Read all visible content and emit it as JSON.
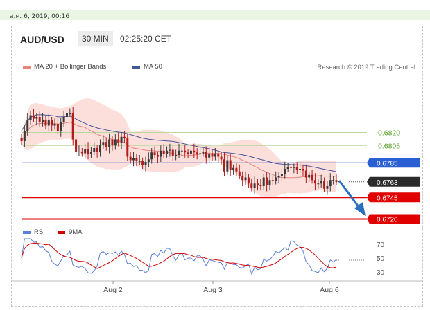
{
  "timestamp": "ส.ค. 6, 2019, 00:16",
  "header": {
    "symbol": "AUD/USD",
    "timeframe": "30 MIN",
    "time": "02:25:20 CET"
  },
  "legend": {
    "bb": "MA 20 + Bollinger Bands",
    "ma50": "MA 50",
    "credit": "Research © 2019 Trading Central"
  },
  "rsi_legend": {
    "rsi": "RSI",
    "ma9": "9MA"
  },
  "colors": {
    "ma20": "#e8837e",
    "ma50": "#44559a",
    "band": "#fbd9d5",
    "up": "#3a3a3a",
    "down": "#b31a1a",
    "green_level": "#59a02a",
    "blue_level": "#2a5fd4",
    "red_level": "#e00000",
    "current": "#2b2b2b",
    "rsi": "#5a7fd8",
    "ma9": "#d00000",
    "arrow": "#2a6ebf"
  },
  "chart_data": {
    "type": "candlestick",
    "x_ticks": [
      "Aug 2",
      "Aug 3",
      "Aug 6"
    ],
    "levels": [
      {
        "value": 0.682,
        "label": "0.6820",
        "style": "green"
      },
      {
        "value": 0.6805,
        "label": "0.6805",
        "style": "green"
      },
      {
        "value": 0.6785,
        "label": "0.6785",
        "style": "blue"
      },
      {
        "value": 0.6763,
        "label": "0.6763",
        "style": "current"
      },
      {
        "value": 0.6745,
        "label": "0.6745",
        "style": "red"
      },
      {
        "value": 0.672,
        "label": "0.6720",
        "style": "red"
      }
    ],
    "closes": [
      0.681,
      0.6822,
      0.6834,
      0.684,
      0.6836,
      0.6838,
      0.6832,
      0.6834,
      0.6828,
      0.6834,
      0.6828,
      0.683,
      0.6822,
      0.6832,
      0.6838,
      0.6842,
      0.6842,
      0.6812,
      0.6798,
      0.6798,
      0.6796,
      0.6801,
      0.6795,
      0.6798,
      0.6802,
      0.6798,
      0.6806,
      0.6809,
      0.6803,
      0.6812,
      0.6805,
      0.6812,
      0.6808,
      0.6815,
      0.6814,
      0.6792,
      0.6788,
      0.679,
      0.6787,
      0.6787,
      0.6782,
      0.6786,
      0.6789,
      0.6797,
      0.6794,
      0.6792,
      0.6799,
      0.6795,
      0.6799,
      0.68,
      0.6793,
      0.6794,
      0.6799,
      0.6799,
      0.6797,
      0.6795,
      0.6799,
      0.6797,
      0.6795,
      0.6796,
      0.6798,
      0.6791,
      0.6795,
      0.6792,
      0.6795,
      0.6792,
      0.6789,
      0.6775,
      0.6788,
      0.6777,
      0.6779,
      0.6775,
      0.677,
      0.6765,
      0.6768,
      0.6761,
      0.6756,
      0.6761,
      0.6759,
      0.6758,
      0.6768,
      0.6759,
      0.6765,
      0.6764,
      0.6768,
      0.677,
      0.6772,
      0.6778,
      0.678,
      0.6779,
      0.678,
      0.6777,
      0.6778,
      0.6776,
      0.6768,
      0.6771,
      0.6765,
      0.6761,
      0.6761,
      0.6764,
      0.6755,
      0.6758,
      0.6765,
      0.6765,
      0.6763
    ],
    "y_range": [
      0.6706,
      0.6882
    ],
    "rsi": {
      "ticks": [
        70,
        50,
        30
      ],
      "range": [
        20,
        80
      ],
      "current": 47
    }
  }
}
